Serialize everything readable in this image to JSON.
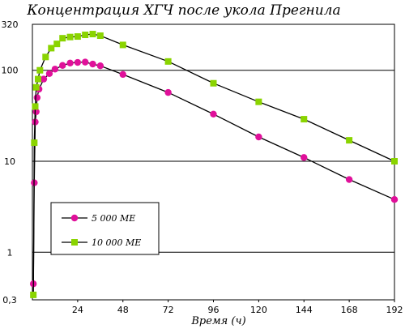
{
  "chart_data": {
    "type": "line",
    "title": "Концентрация ХГЧ после укола Прегнила",
    "xlabel": "Время (ч)",
    "ylabel": "",
    "x_scale": "linear",
    "y_scale": "log",
    "xlim": [
      0,
      192
    ],
    "ylim": [
      0.3,
      320
    ],
    "x_ticks": [
      24,
      48,
      72,
      96,
      120,
      144,
      168,
      192
    ],
    "x_tick_labels": [
      "24",
      "48",
      "72",
      "96",
      "120",
      "144",
      "168",
      "192"
    ],
    "y_ticks": [
      0.3,
      1,
      10,
      100,
      320
    ],
    "y_tick_labels": [
      "0,3",
      "1",
      "10",
      "100",
      "320"
    ],
    "grid": "horizontal",
    "legend_placement": "lower-left",
    "series": [
      {
        "name": "5 000 МЕ",
        "color": "#e0109a",
        "marker": "circle",
        "x": [
          0.5,
          1,
          1.5,
          2,
          2.5,
          3.5,
          6,
          9,
          12,
          16,
          20,
          24,
          28,
          32,
          36,
          48,
          72,
          96,
          120,
          144,
          168,
          192
        ],
        "y": [
          0.45,
          5.8,
          27,
          35,
          50,
          62,
          80,
          92,
          103,
          113,
          120,
          122,
          123,
          117,
          112,
          90,
          57,
          33,
          18.5,
          11,
          6.3,
          3.8
        ]
      },
      {
        "name": "10 000 МЕ",
        "color": "#8ad400",
        "marker": "square",
        "x": [
          0.5,
          1,
          1.5,
          2,
          3,
          4,
          7,
          10,
          13,
          16,
          20,
          24,
          28,
          32,
          36,
          48,
          72,
          96,
          120,
          144,
          168,
          192
        ],
        "y": [
          0.34,
          16,
          40,
          65,
          80,
          100,
          140,
          175,
          195,
          225,
          232,
          235,
          245,
          250,
          240,
          190,
          125,
          72,
          45,
          29,
          17,
          10
        ]
      }
    ]
  }
}
